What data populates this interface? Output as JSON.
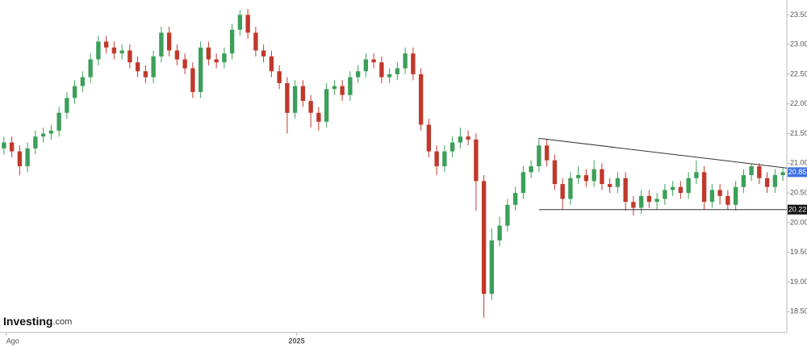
{
  "chart_data": {
    "type": "candlestick",
    "up_color": "#3c9f5a",
    "down_color": "#c0392b",
    "xlim": [
      -0.5,
      99.5
    ],
    "xticks": [
      {
        "value": 0.3,
        "label": "Ago"
      },
      {
        "value": 37.2,
        "label": "2025"
      }
    ],
    "ylim": [
      18.15,
      23.75
    ],
    "yticks": [
      {
        "value": 18.5,
        "label": "18.50"
      },
      {
        "value": 19,
        "label": "19.00"
      },
      {
        "value": 19.5,
        "label": "19.50"
      },
      {
        "value": 20,
        "label": "20.00"
      },
      {
        "value": 20.5,
        "label": "20.50"
      },
      {
        "value": 21,
        "label": "21.00"
      },
      {
        "value": 21.5,
        "label": "21.50"
      },
      {
        "value": 22,
        "label": "22.00"
      },
      {
        "value": 22.5,
        "label": "22.50"
      },
      {
        "value": 23,
        "label": "23.00"
      },
      {
        "value": 23.5,
        "label": "23.50"
      }
    ],
    "open": [
      21.25,
      21.35,
      21.2,
      20.95,
      21.25,
      21.45,
      21.5,
      21.55,
      21.85,
      22.1,
      22.3,
      22.45,
      22.75,
      23.05,
      22.95,
      22.85,
      22.9,
      22.7,
      22.55,
      22.45,
      22.8,
      23.2,
      22.9,
      22.75,
      22.6,
      22.2,
      22.95,
      22.75,
      22.7,
      22.85,
      23.25,
      23.5,
      23.2,
      22.9,
      22.8,
      22.55,
      22.35,
      21.85,
      22.3,
      22.05,
      21.85,
      21.7,
      22.25,
      22.3,
      22.15,
      22.45,
      22.55,
      22.75,
      22.7,
      22.45,
      22.5,
      22.6,
      22.85,
      22.5,
      21.65,
      21.2,
      20.95,
      21.2,
      21.35,
      21.45,
      21.4,
      20.7,
      18.8,
      19.7,
      19.95,
      20.3,
      20.5,
      20.85,
      20.95,
      21.3,
      21.05,
      20.65,
      20.4,
      20.75,
      20.8,
      20.7,
      20.9,
      20.65,
      20.6,
      20.75,
      20.35,
      20.25,
      20.45,
      20.35,
      20.4,
      20.55,
      20.6,
      20.5,
      20.75,
      20.85,
      20.35,
      20.55,
      20.45,
      20.3,
      20.6,
      20.8,
      20.95,
      20.75,
      20.6,
      20.8
    ],
    "high": [
      21.45,
      21.45,
      21.3,
      21.35,
      21.55,
      21.6,
      21.65,
      21.95,
      22.2,
      22.4,
      22.55,
      22.85,
      23.15,
      23.15,
      23.05,
      23.0,
      23.0,
      22.8,
      22.65,
      22.9,
      23.3,
      23.3,
      23.0,
      22.85,
      22.7,
      23.05,
      23.05,
      22.85,
      22.95,
      23.35,
      23.58,
      23.6,
      23.3,
      23.0,
      22.9,
      22.65,
      22.45,
      22.4,
      22.4,
      22.15,
      21.95,
      22.35,
      22.4,
      22.4,
      22.55,
      22.65,
      22.85,
      22.85,
      22.8,
      22.6,
      22.7,
      22.95,
      22.95,
      22.6,
      21.75,
      21.3,
      21.3,
      21.45,
      21.6,
      21.55,
      21.5,
      20.8,
      19.9,
      20.1,
      20.4,
      20.6,
      20.95,
      21.05,
      21.42,
      21.4,
      21.15,
      20.75,
      20.85,
      20.95,
      20.9,
      21.05,
      21.0,
      20.75,
      20.85,
      20.85,
      20.45,
      20.55,
      20.55,
      20.5,
      20.65,
      20.7,
      20.7,
      20.85,
      21.05,
      20.95,
      20.65,
      20.65,
      20.55,
      20.7,
      20.9,
      21.0,
      21.0,
      20.85,
      20.9,
      20.92
    ],
    "low": [
      21.15,
      21.1,
      20.8,
      20.85,
      21.15,
      21.35,
      21.4,
      21.45,
      21.75,
      22.0,
      22.2,
      22.35,
      22.65,
      22.85,
      22.75,
      22.75,
      22.6,
      22.45,
      22.35,
      22.35,
      22.7,
      22.8,
      22.65,
      22.5,
      22.1,
      22.1,
      22.65,
      22.6,
      22.6,
      22.75,
      23.15,
      23.1,
      22.8,
      22.7,
      22.45,
      22.25,
      21.5,
      21.75,
      21.95,
      21.6,
      21.55,
      21.6,
      22.15,
      22.05,
      22.05,
      22.35,
      22.45,
      22.6,
      22.35,
      22.35,
      22.4,
      22.5,
      22.4,
      21.55,
      21.1,
      20.8,
      20.85,
      21.1,
      21.25,
      21.3,
      20.2,
      18.4,
      18.7,
      19.6,
      19.85,
      20.2,
      20.4,
      20.75,
      20.85,
      20.95,
      20.55,
      20.22,
      20.3,
      20.65,
      20.6,
      20.6,
      20.55,
      20.5,
      20.5,
      20.2,
      20.12,
      20.15,
      20.25,
      20.22,
      20.3,
      20.45,
      20.4,
      20.4,
      20.65,
      20.22,
      20.25,
      20.3,
      20.22,
      20.2,
      20.5,
      20.7,
      20.65,
      20.5,
      20.5,
      20.7
    ],
    "close": [
      21.35,
      21.2,
      20.95,
      21.25,
      21.45,
      21.5,
      21.55,
      21.85,
      22.1,
      22.3,
      22.45,
      22.75,
      23.05,
      22.95,
      22.85,
      22.9,
      22.7,
      22.55,
      22.45,
      22.8,
      23.2,
      22.9,
      22.75,
      22.6,
      22.2,
      22.95,
      22.75,
      22.7,
      22.85,
      23.25,
      23.5,
      23.2,
      22.9,
      22.8,
      22.55,
      22.35,
      21.85,
      22.3,
      22.05,
      21.85,
      21.7,
      22.25,
      22.3,
      22.15,
      22.45,
      22.55,
      22.75,
      22.7,
      22.45,
      22.5,
      22.6,
      22.85,
      22.5,
      21.65,
      21.2,
      20.95,
      21.2,
      21.35,
      21.45,
      21.4,
      20.7,
      18.8,
      19.7,
      19.95,
      20.3,
      20.5,
      20.85,
      20.95,
      21.3,
      21.05,
      20.65,
      20.4,
      20.75,
      20.8,
      20.7,
      20.9,
      20.65,
      20.6,
      20.75,
      20.35,
      20.25,
      20.45,
      20.35,
      20.4,
      20.55,
      20.6,
      20.5,
      20.75,
      20.85,
      20.35,
      20.55,
      20.45,
      20.3,
      20.6,
      20.8,
      20.95,
      20.75,
      20.6,
      20.8,
      20.85
    ],
    "trendlines": [
      {
        "x": [
          68,
          99.5
        ],
        "y": [
          21.42,
          20.92
        ]
      },
      {
        "x": [
          68,
          99.5
        ],
        "y": [
          20.22,
          20.22
        ]
      }
    ],
    "price_tags": [
      {
        "value": 20.85,
        "color": "#3d6fe0"
      },
      {
        "value": 20.22,
        "color": "#111111"
      }
    ]
  },
  "watermark": {
    "brand": "Investing",
    "suffix": ".com"
  }
}
